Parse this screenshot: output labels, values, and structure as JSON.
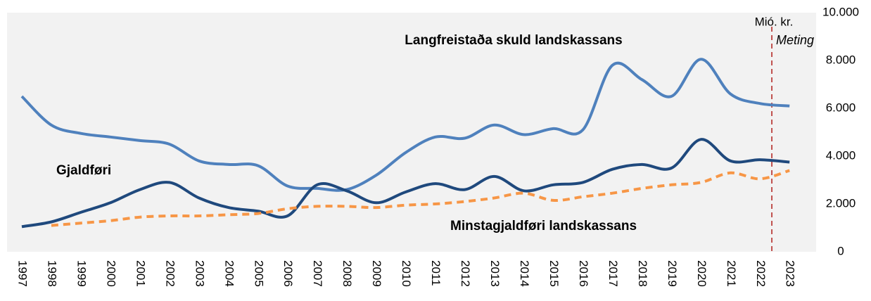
{
  "chart_data": {
    "type": "line",
    "x": [
      1997,
      1998,
      1999,
      2000,
      2001,
      2002,
      2003,
      2004,
      2005,
      2006,
      2007,
      2008,
      2009,
      2010,
      2011,
      2012,
      2013,
      2014,
      2015,
      2016,
      2017,
      2018,
      2019,
      2020,
      2021,
      2022,
      2023
    ],
    "xlim": [
      1996.5,
      2023.9
    ],
    "ylim": [
      0,
      10000
    ],
    "yticks": [
      0,
      {
        "value": 2000,
        "label": "2.000"
      },
      {
        "value": 4000,
        "label": "4.000"
      },
      {
        "value": 6000,
        "label": "6.000"
      },
      {
        "value": 8000,
        "label": "8.000"
      },
      {
        "value": 10000,
        "label": "10.000"
      }
    ],
    "y_axis_label": "Mió. kr.",
    "annotations": [
      {
        "text": "Meting",
        "x": 2022.4,
        "color": "#c0504d"
      }
    ],
    "series": [
      {
        "name": "Langfreistaða skuld landskassans",
        "color": "#4f81bd",
        "dashed": false,
        "values": [
          6500,
          5300,
          4950,
          4800,
          4650,
          4500,
          3800,
          3650,
          3600,
          2750,
          2650,
          2600,
          3200,
          4150,
          4800,
          4750,
          5300,
          4900,
          5150,
          5100,
          7800,
          7200,
          6500,
          8050,
          6600,
          6200,
          6100
        ]
      },
      {
        "name": "Gjaldføri",
        "color": "#1f497d",
        "dashed": false,
        "values": [
          1050,
          1250,
          1650,
          2050,
          2600,
          2900,
          2250,
          1850,
          1700,
          1500,
          2800,
          2550,
          2050,
          2500,
          2850,
          2600,
          3150,
          2550,
          2800,
          2900,
          3450,
          3650,
          3500,
          4700,
          3800,
          3850,
          3750
        ]
      },
      {
        "name": "Minstagjaldføri landskassans",
        "color": "#f79646",
        "dashed": true,
        "values": [
          null,
          1100,
          1200,
          1300,
          1450,
          1500,
          1500,
          1550,
          1600,
          1800,
          1900,
          1900,
          1850,
          1950,
          2000,
          2100,
          2250,
          2450,
          2150,
          2300,
          2450,
          2650,
          2800,
          2900,
          3300,
          3050,
          3400
        ]
      }
    ]
  }
}
